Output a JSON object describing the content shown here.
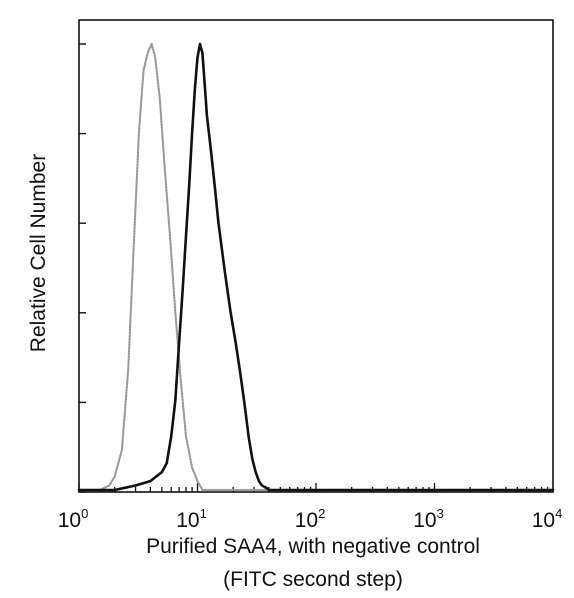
{
  "chart_data": {
    "type": "line",
    "title": "",
    "xlabel": "Purified SAA4, with negative control",
    "xlabel_line2": "(FITC second step)",
    "ylabel": "Relative Cell Number",
    "x_scale": "log",
    "xlim": [
      1,
      10000
    ],
    "ylim": [
      0,
      100
    ],
    "x_ticks": [
      {
        "base": "10",
        "exp": "0",
        "value": 1
      },
      {
        "base": "10",
        "exp": "1",
        "value": 10
      },
      {
        "base": "10",
        "exp": "2",
        "value": 100
      },
      {
        "base": "10",
        "exp": "3",
        "value": 1000
      },
      {
        "base": "10",
        "exp": "4",
        "value": 10000
      }
    ],
    "y_tick_count": 5,
    "grid": false,
    "legend": "none",
    "series": [
      {
        "color": "#9a9a9a",
        "style": "dotted",
        "x": [
          1.0,
          1.5,
          1.8,
          2.0,
          2.3,
          2.6,
          2.9,
          3.2,
          3.5,
          3.8,
          4.1,
          4.4,
          4.8,
          5.3,
          5.9,
          6.5,
          7.2,
          8.0,
          9.0,
          10.0,
          11.0,
          13.0,
          20.0,
          10000.0
        ],
        "y": [
          0,
          0,
          1,
          3,
          9,
          27,
          55,
          80,
          94,
          98,
          100,
          97,
          88,
          72,
          56,
          40,
          25,
          12,
          5,
          2,
          0,
          0,
          0,
          0
        ]
      },
      {
        "color": "#111111",
        "style": "solid",
        "x": [
          1.0,
          2.0,
          3.0,
          4.0,
          5.0,
          5.5,
          6.0,
          6.5,
          7.0,
          7.5,
          8.0,
          8.5,
          9.0,
          9.5,
          10.0,
          10.5,
          11.0,
          11.5,
          12.0,
          13.0,
          14.0,
          15.0,
          17.0,
          19.0,
          21.0,
          23.0,
          25.0,
          27.0,
          29.0,
          31.0,
          33.0,
          35.0,
          38.0,
          40.0,
          60.0,
          10000.0
        ],
        "y": [
          0,
          0,
          1,
          2,
          4,
          6,
          12,
          20,
          33,
          45,
          57,
          68,
          80,
          90,
          97,
          100,
          98,
          91,
          84,
          76,
          68,
          60,
          49,
          40,
          33,
          26,
          19,
          12,
          7,
          4,
          2,
          1,
          0.5,
          0,
          0,
          0
        ]
      }
    ]
  }
}
